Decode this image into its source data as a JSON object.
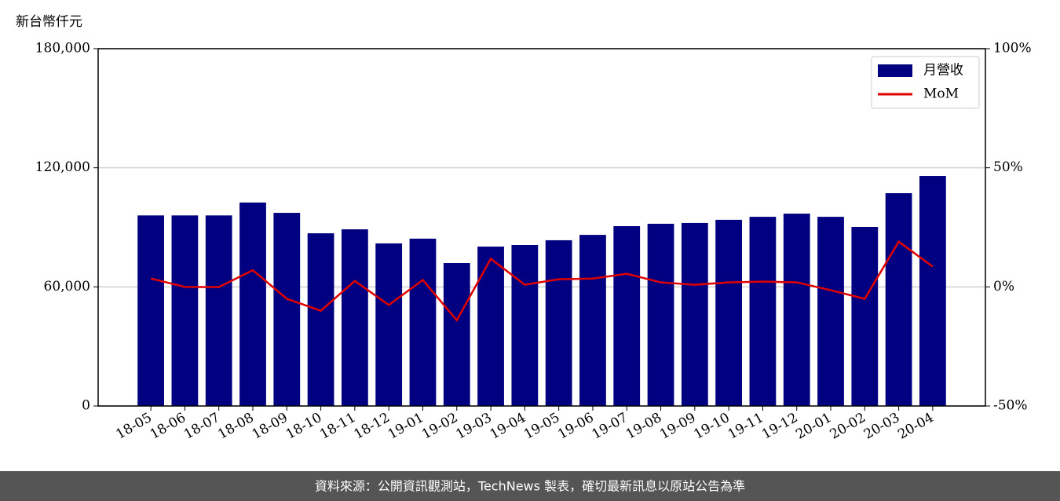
{
  "chart_data": {
    "type": "bar_line",
    "y_label": "新台幣仟元",
    "categories": [
      "18-05",
      "18-06",
      "18-07",
      "18-08",
      "18-09",
      "18-10",
      "18-11",
      "18-12",
      "19-01",
      "19-02",
      "19-03",
      "19-04",
      "19-05",
      "19-06",
      "19-07",
      "19-08",
      "19-09",
      "19-10",
      "19-11",
      "19-12",
      "20-01",
      "20-02",
      "20-03",
      "20-04"
    ],
    "series": [
      {
        "name": "月營收",
        "type": "bar",
        "color": "#000080",
        "axis": "y",
        "values": [
          96000,
          96000,
          96000,
          102500,
          97300,
          87000,
          89000,
          81900,
          84300,
          72000,
          80300,
          81100,
          83500,
          86200,
          90600,
          91800,
          92200,
          93800,
          95300,
          96900,
          95300,
          90200,
          107200,
          115900
        ]
      },
      {
        "name": "MoM",
        "type": "line",
        "color": "#e00000",
        "axis": "y2",
        "values": [
          3.5,
          0,
          -0.1,
          7,
          -5,
          -10,
          2.5,
          -7.6,
          2.9,
          -14,
          11.8,
          0.9,
          3.2,
          3.5,
          5.5,
          1.9,
          0.9,
          1.9,
          2.2,
          1.9,
          -1.4,
          -5,
          19,
          8.5
        ]
      }
    ],
    "ylim": [
      0,
      180000
    ],
    "yticks": [
      0,
      {
        "value": 60000,
        "label": "60,000"
      },
      {
        "value": 120000,
        "label": "120,000"
      },
      {
        "value": 180000,
        "label": "180,000"
      }
    ],
    "y2lim": [
      -50,
      100
    ],
    "y2ticks": [
      {
        "value": -50,
        "label": "-50%"
      },
      {
        "value": 0,
        "label": "0%"
      },
      {
        "value": 50,
        "label": "50%"
      },
      {
        "value": 100,
        "label": "100%"
      }
    ],
    "grid": true,
    "legend": "upper right"
  },
  "footer": "資料來源：公開資訊觀測站，TechNews 製表，確切最新訊息以原站公告為準"
}
